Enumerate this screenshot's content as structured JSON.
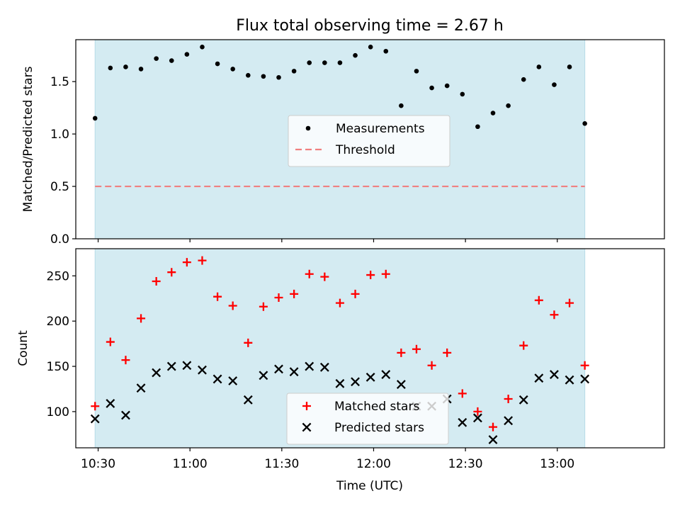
{
  "figure": {
    "title": "Flux total observing time = 2.67 h",
    "xlabel": "Time (UTC)",
    "xticks": [
      {
        "label": "10:30",
        "value": 630
      },
      {
        "label": "11:00",
        "value": 660
      },
      {
        "label": "11:30",
        "value": 690
      },
      {
        "label": "12:00",
        "value": 720
      },
      {
        "label": "12:30",
        "value": 750
      },
      {
        "label": "13:00",
        "value": 780
      }
    ],
    "shade_color": "#d4ebf2",
    "shade_range": [
      "10:29",
      "13:09"
    ]
  },
  "chart_data": [
    {
      "type": "scatter",
      "ylabel": "Matched/Predicted stars",
      "ylim": [
        0,
        1.9
      ],
      "yticks": [
        "0.0",
        "0.5",
        "1.0",
        "1.5"
      ],
      "legend_position": "center",
      "x": [
        "10:29",
        "10:34",
        "10:39",
        "10:44",
        "10:49",
        "10:54",
        "10:59",
        "11:04",
        "11:09",
        "11:14",
        "11:19",
        "11:24",
        "11:29",
        "11:34",
        "11:39",
        "11:44",
        "11:49",
        "11:54",
        "11:59",
        "12:04",
        "12:09",
        "12:14",
        "12:19",
        "12:24",
        "12:29",
        "12:34",
        "12:39",
        "12:44",
        "12:49",
        "12:54",
        "12:59",
        "13:04",
        "13:09"
      ],
      "series": [
        {
          "name": "Measurements",
          "color": "#000000",
          "marker": "dot",
          "values": [
            1.15,
            1.63,
            1.64,
            1.62,
            1.72,
            1.7,
            1.76,
            1.83,
            1.67,
            1.62,
            1.56,
            1.55,
            1.54,
            1.6,
            1.68,
            1.68,
            1.68,
            1.75,
            1.83,
            1.79,
            1.27,
            1.6,
            1.44,
            1.46,
            1.38,
            1.07,
            1.2,
            1.27,
            1.52,
            1.64,
            1.47,
            1.64,
            1.1
          ]
        }
      ],
      "threshold": {
        "name": "Threshold",
        "value": 0.5,
        "color": "#f08080"
      }
    },
    {
      "type": "scatter",
      "ylabel": "Count",
      "ylim": [
        60,
        280
      ],
      "yticks": [
        "100",
        "150",
        "200",
        "250"
      ],
      "legend_position": "lower center",
      "x": [
        "10:29",
        "10:34",
        "10:39",
        "10:44",
        "10:49",
        "10:54",
        "10:59",
        "11:04",
        "11:09",
        "11:14",
        "11:19",
        "11:24",
        "11:29",
        "11:34",
        "11:39",
        "11:44",
        "11:49",
        "11:54",
        "11:59",
        "12:04",
        "12:09",
        "12:14",
        "12:19",
        "12:24",
        "12:29",
        "12:34",
        "12:39",
        "12:44",
        "12:49",
        "12:54",
        "12:59",
        "13:04",
        "13:09"
      ],
      "series": [
        {
          "name": "Matched stars",
          "color": "#ff0000",
          "marker": "plus",
          "values": [
            106,
            177,
            157,
            203,
            244,
            254,
            265,
            267,
            227,
            217,
            176,
            216,
            226,
            230,
            252,
            249,
            220,
            230,
            251,
            252,
            165,
            169,
            151,
            165,
            120,
            100,
            83,
            114,
            173,
            223,
            207,
            220,
            151
          ]
        },
        {
          "name": "Predicted stars",
          "color": "#000000",
          "marker": "x",
          "values": [
            92,
            109,
            96,
            126,
            143,
            150,
            151,
            146,
            136,
            134,
            113,
            140,
            147,
            144,
            150,
            149,
            131,
            133,
            138,
            141,
            130,
            106,
            106,
            114,
            88,
            93,
            69,
            90,
            113,
            137,
            141,
            135,
            136
          ]
        }
      ]
    }
  ]
}
